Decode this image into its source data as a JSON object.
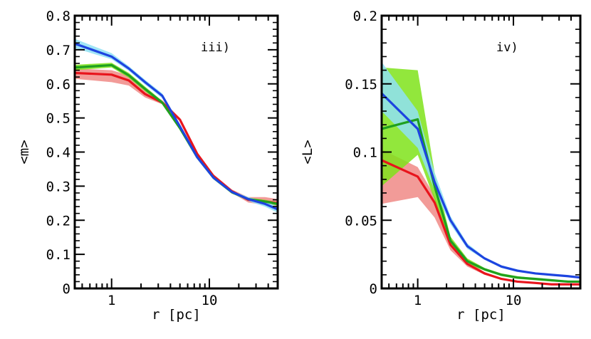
{
  "chart_data": [
    {
      "type": "line",
      "panel_label": "iii)",
      "xlabel": "r [pc]",
      "ylabel": "<m>",
      "xscale": "log",
      "xlim": [
        0.42,
        50
      ],
      "ylim": [
        0,
        0.8
      ],
      "xticks": [
        {
          "value": 1,
          "label": "1"
        },
        {
          "value": 10,
          "label": "10"
        }
      ],
      "yticks": [
        {
          "value": 0,
          "label": "0"
        },
        {
          "value": 0.1,
          "label": "0.1"
        },
        {
          "value": 0.2,
          "label": "0.2"
        },
        {
          "value": 0.3,
          "label": "0.3"
        },
        {
          "value": 0.4,
          "label": "0.4"
        },
        {
          "value": 0.5,
          "label": "0.5"
        },
        {
          "value": 0.6,
          "label": "0.6"
        },
        {
          "value": 0.7,
          "label": "0.7"
        },
        {
          "value": 0.8,
          "label": "0.8"
        }
      ],
      "series": [
        {
          "name": "red",
          "color": "#e8141c",
          "band_color": "#f08a86",
          "x": [
            0.42,
            1.0,
            1.5,
            2.2,
            3.3,
            5.0,
            7.5,
            11,
            17,
            25,
            37,
            50
          ],
          "values": [
            0.632,
            0.627,
            0.61,
            0.57,
            0.545,
            0.495,
            0.395,
            0.33,
            0.285,
            0.26,
            0.255,
            0.25
          ],
          "band_low": [
            0.615,
            0.605,
            0.595,
            0.56,
            0.54,
            0.49,
            0.39,
            0.325,
            0.28,
            0.252,
            0.245,
            0.24
          ],
          "band_high": [
            0.645,
            0.64,
            0.625,
            0.58,
            0.552,
            0.5,
            0.4,
            0.335,
            0.29,
            0.268,
            0.268,
            0.262
          ]
        },
        {
          "name": "green",
          "color": "#1fa01f",
          "band_color": "#7fe31a",
          "x": [
            0.42,
            1.0,
            1.5,
            2.2,
            3.3,
            5.0,
            7.5,
            11,
            17,
            25,
            37,
            50
          ],
          "values": [
            0.648,
            0.655,
            0.625,
            0.585,
            0.545,
            0.47,
            0.385,
            0.325,
            0.282,
            0.262,
            0.255,
            0.248
          ],
          "band_low": [
            0.64,
            0.648,
            0.618,
            0.578,
            0.54,
            0.465,
            0.38,
            0.32,
            0.278,
            0.258,
            0.25,
            0.243
          ],
          "band_high": [
            0.656,
            0.662,
            0.632,
            0.592,
            0.55,
            0.475,
            0.39,
            0.33,
            0.286,
            0.266,
            0.26,
            0.253
          ]
        },
        {
          "name": "blue",
          "color": "#1d44e0",
          "band_color": "#8fe0f5",
          "x": [
            0.42,
            1.0,
            1.5,
            2.2,
            3.3,
            5.0,
            7.5,
            11,
            17,
            25,
            37,
            50
          ],
          "values": [
            0.718,
            0.68,
            0.645,
            0.605,
            0.565,
            0.475,
            0.385,
            0.325,
            0.283,
            0.262,
            0.248,
            0.232
          ],
          "band_low": [
            0.705,
            0.672,
            0.638,
            0.598,
            0.558,
            0.47,
            0.38,
            0.32,
            0.279,
            0.256,
            0.24,
            0.222
          ],
          "band_high": [
            0.732,
            0.69,
            0.652,
            0.612,
            0.572,
            0.48,
            0.39,
            0.33,
            0.287,
            0.268,
            0.256,
            0.24
          ]
        }
      ]
    },
    {
      "type": "line",
      "panel_label": "iv)",
      "xlabel": "r [pc]",
      "ylabel": "<L>",
      "xscale": "log",
      "xlim": [
        0.42,
        50
      ],
      "ylim": [
        0,
        0.2
      ],
      "xticks": [
        {
          "value": 1,
          "label": "1"
        },
        {
          "value": 10,
          "label": "10"
        }
      ],
      "yticks": [
        {
          "value": 0,
          "label": "0"
        },
        {
          "value": 0.05,
          "label": "0.05"
        },
        {
          "value": 0.1,
          "label": "0.1"
        },
        {
          "value": 0.15,
          "label": "0.15"
        },
        {
          "value": 0.2,
          "label": "0.2"
        }
      ],
      "series": [
        {
          "name": "red",
          "color": "#e8141c",
          "band_color": "#f08a86",
          "x": [
            0.42,
            1.0,
            1.5,
            2.2,
            3.3,
            5.0,
            7.5,
            11,
            17,
            25,
            37,
            50
          ],
          "values": [
            0.094,
            0.082,
            0.063,
            0.032,
            0.018,
            0.011,
            0.007,
            0.005,
            0.004,
            0.003,
            0.003,
            0.003
          ],
          "band_low": [
            0.062,
            0.067,
            0.052,
            0.028,
            0.016,
            0.01,
            0.0065,
            0.0045,
            0.0035,
            0.0028,
            0.0026,
            0.0025
          ],
          "band_high": [
            0.102,
            0.089,
            0.068,
            0.036,
            0.02,
            0.012,
            0.0075,
            0.0055,
            0.0045,
            0.0035,
            0.0034,
            0.0033
          ]
        },
        {
          "name": "green",
          "color": "#1fa01f",
          "band_color": "#7fe31a",
          "x": [
            0.42,
            1.0,
            1.5,
            2.2,
            3.3,
            5.0,
            7.5,
            11,
            17,
            25,
            37,
            50
          ],
          "values": [
            0.117,
            0.124,
            0.075,
            0.035,
            0.02,
            0.014,
            0.01,
            0.008,
            0.007,
            0.006,
            0.005,
            0.005
          ],
          "band_low": [
            0.075,
            0.098,
            0.065,
            0.032,
            0.018,
            0.013,
            0.009,
            0.007,
            0.006,
            0.005,
            0.0045,
            0.0045
          ],
          "band_high": [
            0.162,
            0.16,
            0.085,
            0.038,
            0.022,
            0.015,
            0.011,
            0.009,
            0.0075,
            0.0065,
            0.0058,
            0.0055
          ]
        },
        {
          "name": "blue",
          "color": "#1d44e0",
          "band_color": "#8fe0f5",
          "x": [
            0.42,
            1.0,
            1.5,
            2.2,
            3.3,
            5.0,
            7.5,
            11,
            17,
            25,
            37,
            50
          ],
          "values": [
            0.143,
            0.117,
            0.078,
            0.05,
            0.031,
            0.022,
            0.016,
            0.013,
            0.011,
            0.01,
            0.009,
            0.008
          ],
          "band_low": [
            0.13,
            0.103,
            0.072,
            0.047,
            0.029,
            0.021,
            0.015,
            0.012,
            0.0105,
            0.0095,
            0.0085,
            0.0075
          ],
          "band_high": [
            0.166,
            0.13,
            0.085,
            0.053,
            0.033,
            0.023,
            0.017,
            0.014,
            0.0115,
            0.0105,
            0.0095,
            0.0085
          ]
        }
      ]
    }
  ]
}
